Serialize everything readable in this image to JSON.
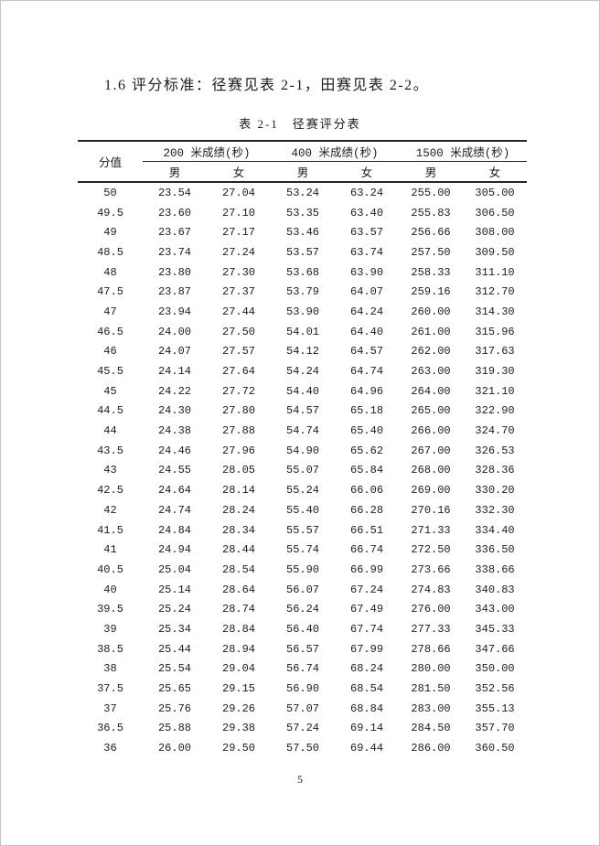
{
  "intro": {
    "text": "1.6 评分标准：径赛见表 2-1，田赛见表 2-2。"
  },
  "table": {
    "caption": "表 2-1　径赛评分表",
    "score_col_header": "分值",
    "event_groups": [
      "200 米成绩(秒)",
      "400 米成绩(秒)",
      "1500 米成绩(秒)"
    ],
    "gender_headers": [
      "男",
      "女"
    ],
    "rows": [
      [
        "50",
        "23.54",
        "27.04",
        "53.24",
        "63.24",
        "255.00",
        "305.00"
      ],
      [
        "49.5",
        "23.60",
        "27.10",
        "53.35",
        "63.40",
        "255.83",
        "306.50"
      ],
      [
        "49",
        "23.67",
        "27.17",
        "53.46",
        "63.57",
        "256.66",
        "308.00"
      ],
      [
        "48.5",
        "23.74",
        "27.24",
        "53.57",
        "63.74",
        "257.50",
        "309.50"
      ],
      [
        "48",
        "23.80",
        "27.30",
        "53.68",
        "63.90",
        "258.33",
        "311.10"
      ],
      [
        "47.5",
        "23.87",
        "27.37",
        "53.79",
        "64.07",
        "259.16",
        "312.70"
      ],
      [
        "47",
        "23.94",
        "27.44",
        "53.90",
        "64.24",
        "260.00",
        "314.30"
      ],
      [
        "46.5",
        "24.00",
        "27.50",
        "54.01",
        "64.40",
        "261.00",
        "315.96"
      ],
      [
        "46",
        "24.07",
        "27.57",
        "54.12",
        "64.57",
        "262.00",
        "317.63"
      ],
      [
        "45.5",
        "24.14",
        "27.64",
        "54.24",
        "64.74",
        "263.00",
        "319.30"
      ],
      [
        "45",
        "24.22",
        "27.72",
        "54.40",
        "64.96",
        "264.00",
        "321.10"
      ],
      [
        "44.5",
        "24.30",
        "27.80",
        "54.57",
        "65.18",
        "265.00",
        "322.90"
      ],
      [
        "44",
        "24.38",
        "27.88",
        "54.74",
        "65.40",
        "266.00",
        "324.70"
      ],
      [
        "43.5",
        "24.46",
        "27.96",
        "54.90",
        "65.62",
        "267.00",
        "326.53"
      ],
      [
        "43",
        "24.55",
        "28.05",
        "55.07",
        "65.84",
        "268.00",
        "328.36"
      ],
      [
        "42.5",
        "24.64",
        "28.14",
        "55.24",
        "66.06",
        "269.00",
        "330.20"
      ],
      [
        "42",
        "24.74",
        "28.24",
        "55.40",
        "66.28",
        "270.16",
        "332.30"
      ],
      [
        "41.5",
        "24.84",
        "28.34",
        "55.57",
        "66.51",
        "271.33",
        "334.40"
      ],
      [
        "41",
        "24.94",
        "28.44",
        "55.74",
        "66.74",
        "272.50",
        "336.50"
      ],
      [
        "40.5",
        "25.04",
        "28.54",
        "55.90",
        "66.99",
        "273.66",
        "338.66"
      ],
      [
        "40",
        "25.14",
        "28.64",
        "56.07",
        "67.24",
        "274.83",
        "340.83"
      ],
      [
        "39.5",
        "25.24",
        "28.74",
        "56.24",
        "67.49",
        "276.00",
        "343.00"
      ],
      [
        "39",
        "25.34",
        "28.84",
        "56.40",
        "67.74",
        "277.33",
        "345.33"
      ],
      [
        "38.5",
        "25.44",
        "28.94",
        "56.57",
        "67.99",
        "278.66",
        "347.66"
      ],
      [
        "38",
        "25.54",
        "29.04",
        "56.74",
        "68.24",
        "280.00",
        "350.00"
      ],
      [
        "37.5",
        "25.65",
        "29.15",
        "56.90",
        "68.54",
        "281.50",
        "352.56"
      ],
      [
        "37",
        "25.76",
        "29.26",
        "57.07",
        "68.84",
        "283.00",
        "355.13"
      ],
      [
        "36.5",
        "25.88",
        "29.38",
        "57.24",
        "69.14",
        "284.50",
        "357.70"
      ],
      [
        "36",
        "26.00",
        "29.50",
        "57.50",
        "69.44",
        "286.00",
        "360.50"
      ]
    ]
  },
  "footer": {
    "page_number": "5"
  }
}
